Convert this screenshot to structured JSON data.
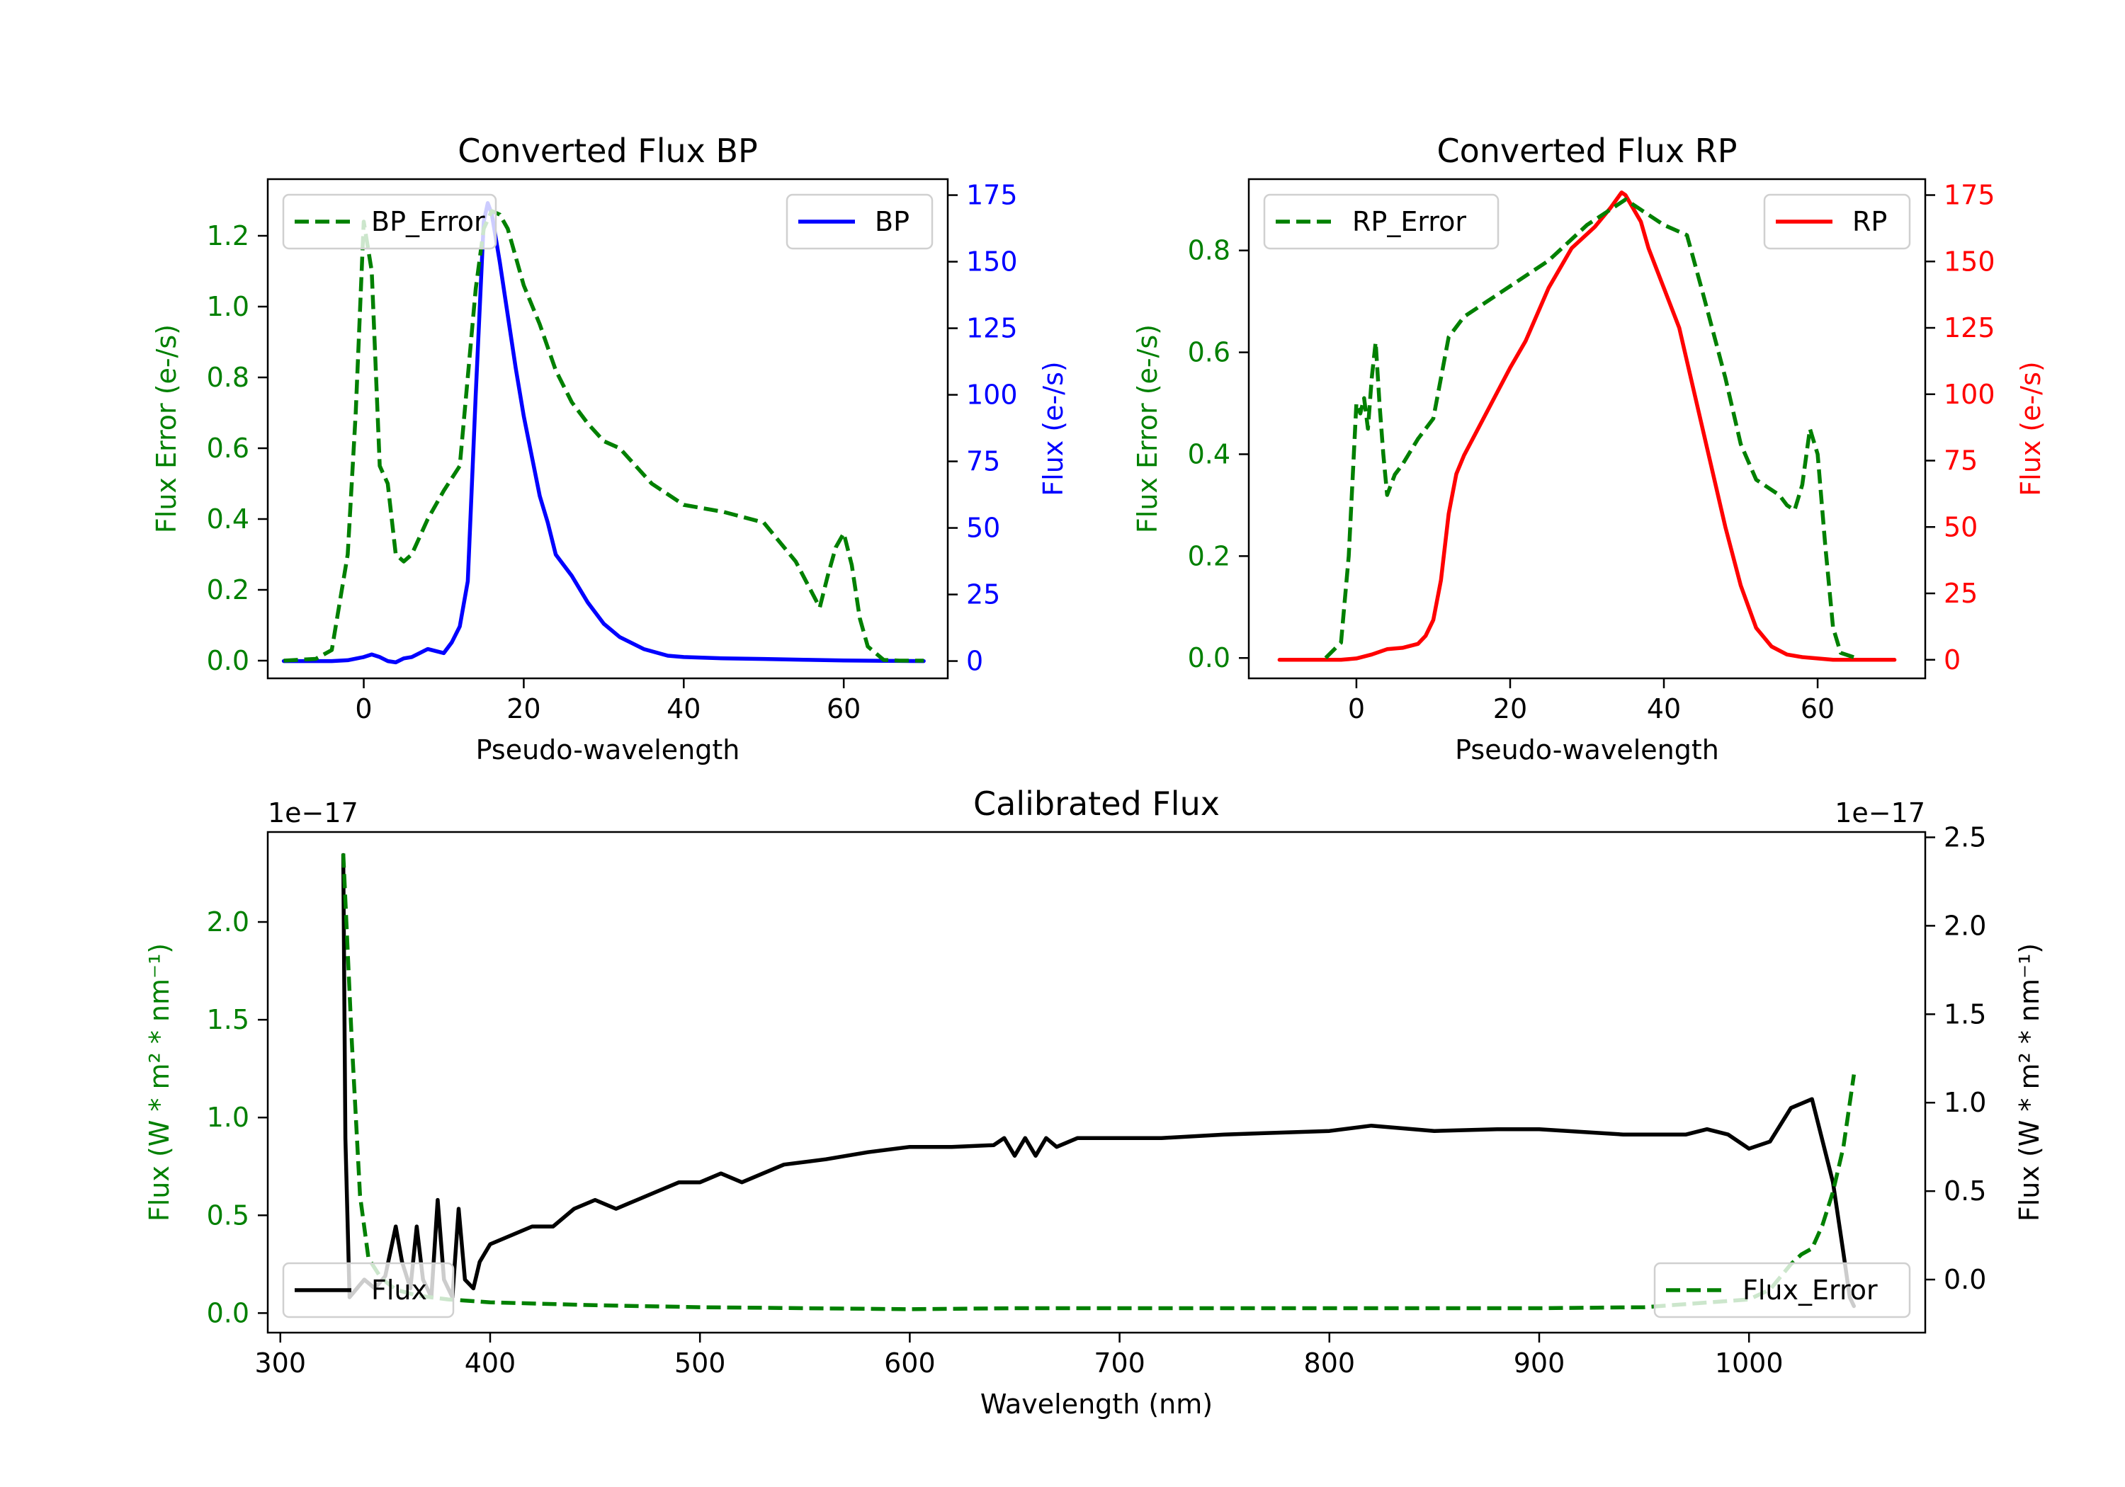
{
  "chart_data": [
    {
      "type": "line",
      "title": "Converted Flux BP",
      "xlabel": "Pseudo-wavelength",
      "ylabel_left": "Flux Error (e-/s)",
      "ylabel_right": "Flux (e-/s)",
      "xlim": [
        -12,
        73
      ],
      "ylim_left": [
        -0.05,
        1.36
      ],
      "ylim_right": [
        -6.5,
        181
      ],
      "xticks": [
        0,
        20,
        40,
        60
      ],
      "yticks_left": [
        0.0,
        0.2,
        0.4,
        0.6,
        0.8,
        1.0,
        1.2
      ],
      "yticks_right": [
        0,
        25,
        50,
        75,
        100,
        125,
        150,
        175
      ],
      "ytick_labels_left": [
        "0.0",
        "0.2",
        "0.4",
        "0.6",
        "0.8",
        "1.0",
        "1.2"
      ],
      "legend_left_label": "BP_Error",
      "legend_right_label": "BP",
      "colors": {
        "error": "#008000",
        "flux": "#0000ff",
        "left_axis": "#008000",
        "right_axis": "#0000ff"
      },
      "series": [
        {
          "name": "BP_Error",
          "axis": "left",
          "style": "dashed",
          "x": [
            -10,
            -6,
            -4,
            -2,
            -1,
            0,
            1,
            2,
            3,
            4,
            5,
            6,
            7,
            8,
            10,
            12,
            14,
            15,
            16,
            17,
            18,
            20,
            22,
            24,
            26,
            28,
            30,
            32,
            34,
            36,
            40,
            45,
            50,
            54,
            57,
            58,
            59,
            60,
            61,
            62,
            63,
            65,
            67,
            70
          ],
          "y": [
            0,
            0.005,
            0.03,
            0.3,
            0.7,
            1.24,
            1.1,
            0.55,
            0.5,
            0.3,
            0.28,
            0.3,
            0.35,
            0.4,
            0.48,
            0.55,
            1.05,
            1.22,
            1.27,
            1.26,
            1.22,
            1.06,
            0.95,
            0.82,
            0.73,
            0.67,
            0.62,
            0.6,
            0.55,
            0.5,
            0.44,
            0.42,
            0.39,
            0.28,
            0.15,
            0.24,
            0.32,
            0.36,
            0.27,
            0.12,
            0.04,
            0.002,
            0,
            0
          ]
        },
        {
          "name": "BP",
          "axis": "right",
          "style": "solid",
          "x": [
            -10,
            -4,
            -2,
            0,
            1,
            2,
            3,
            4,
            5,
            6,
            8,
            10,
            11,
            12,
            13,
            14,
            15,
            15.5,
            16,
            17,
            18,
            19,
            20,
            21,
            22,
            23,
            24,
            26,
            28,
            30,
            32,
            35,
            38,
            40,
            45,
            50,
            55,
            60,
            65,
            70
          ],
          "y": [
            0,
            0,
            0.3,
            1.5,
            2.5,
            1.5,
            0,
            -0.5,
            1,
            1.5,
            4.5,
            3,
            7,
            13,
            30,
            100,
            165,
            172,
            168,
            150,
            130,
            110,
            92,
            77,
            62,
            52,
            40,
            32,
            22,
            14,
            9,
            4.5,
            2,
            1.5,
            1,
            0.8,
            0.5,
            0.2,
            0.1,
            0
          ]
        }
      ]
    },
    {
      "type": "line",
      "title": "Converted Flux RP",
      "xlabel": "Pseudo-wavelength",
      "ylabel_left": "Flux Error (e-/s)",
      "ylabel_right": "Flux (e-/s)",
      "xlim": [
        -14,
        74
      ],
      "ylim_left": [
        -0.04,
        0.94
      ],
      "ylim_right": [
        -7,
        181
      ],
      "xticks": [
        0,
        20,
        40,
        60
      ],
      "yticks_left": [
        0.0,
        0.2,
        0.4,
        0.6,
        0.8
      ],
      "yticks_right": [
        0,
        25,
        50,
        75,
        100,
        125,
        150,
        175
      ],
      "ytick_labels_left": [
        "0.0",
        "0.2",
        "0.4",
        "0.6",
        "0.8"
      ],
      "legend_left_label": "RP_Error",
      "legend_right_label": "RP",
      "colors": {
        "error": "#008000",
        "flux": "#ff0000",
        "left_axis": "#008000",
        "right_axis": "#ff0000"
      },
      "series": [
        {
          "name": "RP_Error",
          "axis": "left",
          "style": "dashed",
          "x": [
            -4,
            -2,
            -1,
            0,
            0.5,
            1,
            1.5,
            2,
            2.5,
            3,
            3.5,
            4,
            5,
            6,
            8,
            10,
            12,
            14,
            17,
            20,
            25,
            30,
            33,
            35,
            37,
            40,
            43,
            45,
            48,
            50,
            52,
            55,
            56,
            57,
            58,
            59,
            60,
            61,
            62,
            63,
            65
          ],
          "y": [
            0,
            0.03,
            0.2,
            0.5,
            0.48,
            0.51,
            0.45,
            0.55,
            0.62,
            0.5,
            0.4,
            0.32,
            0.36,
            0.38,
            0.43,
            0.47,
            0.63,
            0.67,
            0.7,
            0.73,
            0.78,
            0.85,
            0.88,
            0.9,
            0.88,
            0.85,
            0.83,
            0.72,
            0.55,
            0.42,
            0.35,
            0.32,
            0.3,
            0.29,
            0.34,
            0.45,
            0.4,
            0.22,
            0.06,
            0.01,
            0
          ]
        },
        {
          "name": "RP",
          "axis": "right",
          "style": "solid",
          "x": [
            -10,
            -2,
            0,
            2,
            4,
            6,
            8,
            9,
            10,
            11,
            12,
            13,
            14,
            16,
            18,
            20,
            22,
            25,
            28,
            31,
            33,
            34.5,
            35,
            36,
            37,
            38,
            40,
            42,
            44,
            46,
            48,
            50,
            52,
            54,
            56,
            58,
            62,
            70
          ],
          "y": [
            0,
            0,
            0.5,
            2,
            4,
            4.5,
            6,
            9,
            15,
            30,
            55,
            70,
            77,
            88,
            99,
            110,
            120,
            140,
            155,
            163,
            170,
            176,
            175,
            170,
            165,
            155,
            140,
            125,
            100,
            75,
            50,
            28,
            12,
            5,
            2,
            1,
            0,
            0
          ]
        }
      ]
    },
    {
      "type": "line",
      "title": "Calibrated Flux",
      "xlabel": "Wavelength (nm)",
      "ylabel_left": "Flux (W * m² * nm⁻¹)",
      "ylabel_right": "Flux (W * m² * nm⁻¹)",
      "offset_text_left": "1e−17",
      "offset_text_right": "1e−17",
      "xlim": [
        294,
        1084
      ],
      "ylim_left": [
        -0.1,
        2.46
      ],
      "ylim_right": [
        -0.3,
        2.53
      ],
      "xticks": [
        300,
        400,
        500,
        600,
        700,
        800,
        900,
        1000
      ],
      "yticks_left": [
        0.0,
        0.5,
        1.0,
        1.5,
        2.0
      ],
      "yticks_right": [
        0.0,
        0.5,
        1.0,
        1.5,
        2.0,
        2.5
      ],
      "ytick_labels_left": [
        "0.0",
        "0.5",
        "1.0",
        "1.5",
        "2.0"
      ],
      "ytick_labels_right": [
        "0.0",
        "0.5",
        "1.0",
        "1.5",
        "2.0",
        "2.5"
      ],
      "legend_left_label": "Flux",
      "legend_right_label": "Flux_Error",
      "colors": {
        "error": "#008000",
        "flux": "#000000",
        "left_axis": "#008000",
        "right_axis": "#000000"
      },
      "series": [
        {
          "name": "Flux_Error",
          "axis": "left",
          "style": "dashed",
          "x": [
            330,
            334,
            338,
            342,
            348,
            355,
            365,
            380,
            400,
            450,
            500,
            600,
            650,
            700,
            800,
            900,
            950,
            1000,
            1010,
            1020,
            1025,
            1030,
            1035,
            1040,
            1045,
            1050
          ],
          "y": [
            2.35,
            1.4,
            0.6,
            0.28,
            0.18,
            0.12,
            0.09,
            0.07,
            0.055,
            0.04,
            0.03,
            0.02,
            0.025,
            0.025,
            0.025,
            0.025,
            0.03,
            0.07,
            0.12,
            0.25,
            0.3,
            0.33,
            0.45,
            0.62,
            0.85,
            1.22
          ]
        },
        {
          "name": "Flux",
          "axis": "right",
          "style": "solid",
          "x": [
            330,
            331,
            333,
            340,
            345,
            350,
            355,
            358,
            362,
            365,
            368,
            372,
            375,
            378,
            382,
            385,
            388,
            392,
            395,
            400,
            410,
            420,
            430,
            440,
            450,
            460,
            470,
            480,
            490,
            500,
            510,
            520,
            530,
            540,
            560,
            580,
            600,
            620,
            640,
            645,
            650,
            655,
            660,
            665,
            670,
            680,
            690,
            700,
            720,
            750,
            800,
            820,
            850,
            880,
            900,
            940,
            950,
            960,
            970,
            980,
            990,
            1000,
            1010,
            1020,
            1030,
            1040,
            1045,
            1048,
            1050
          ],
          "y": [
            2.4,
            0.8,
            -0.1,
            0.0,
            -0.05,
            0.02,
            0.3,
            0.1,
            -0.05,
            0.3,
            0.0,
            -0.1,
            0.45,
            0.0,
            -0.1,
            0.4,
            0.0,
            -0.05,
            0.1,
            0.2,
            0.25,
            0.3,
            0.3,
            0.4,
            0.45,
            0.4,
            0.45,
            0.5,
            0.55,
            0.55,
            0.6,
            0.55,
            0.6,
            0.65,
            0.68,
            0.72,
            0.75,
            0.75,
            0.76,
            0.8,
            0.7,
            0.8,
            0.7,
            0.8,
            0.75,
            0.8,
            0.8,
            0.8,
            0.8,
            0.82,
            0.84,
            0.87,
            0.84,
            0.85,
            0.85,
            0.82,
            0.82,
            0.82,
            0.82,
            0.85,
            0.82,
            0.74,
            0.78,
            0.97,
            1.02,
            0.55,
            0.15,
            -0.1,
            -0.15
          ]
        }
      ]
    }
  ]
}
